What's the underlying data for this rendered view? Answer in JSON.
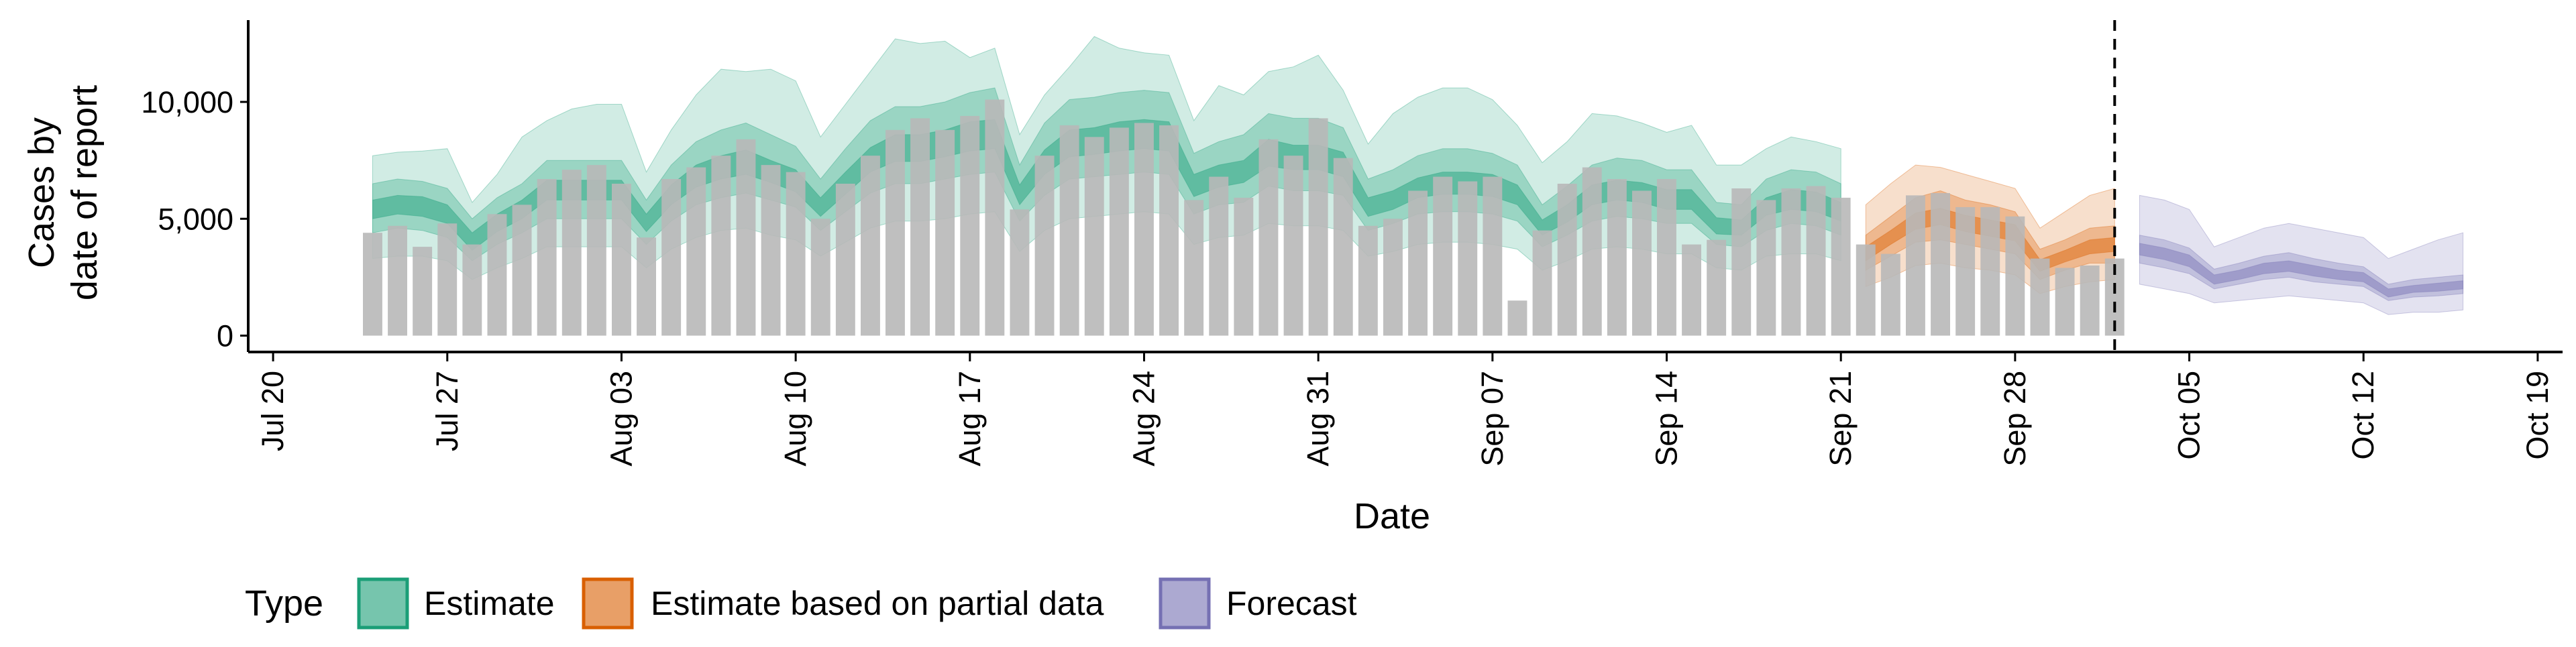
{
  "chart_data": {
    "type": "bar",
    "title": "",
    "xlabel": "Date",
    "ylabel_lines": [
      "Cases by",
      "date of report"
    ],
    "ylim": [
      -700,
      13500
    ],
    "y_ticks": [
      0,
      5000,
      10000
    ],
    "y_tick_labels": [
      "0",
      "5,000",
      "10,000"
    ],
    "x_range": [
      "2020-07-19",
      "2020-10-20"
    ],
    "x_ticks": [
      "2020-07-20",
      "2020-07-27",
      "2020-08-03",
      "2020-08-10",
      "2020-08-17",
      "2020-08-24",
      "2020-08-31",
      "2020-09-07",
      "2020-09-14",
      "2020-09-21",
      "2020-09-28",
      "2020-10-05",
      "2020-10-12",
      "2020-10-19"
    ],
    "x_tick_labels": [
      "Jul 20",
      "Jul 27",
      "Aug 03",
      "Aug 10",
      "Aug 17",
      "Aug 24",
      "Aug 31",
      "Sep 07",
      "Sep 14",
      "Sep 21",
      "Sep 28",
      "Oct 05",
      "Oct 12",
      "Oct 19"
    ],
    "forecast_start_line": "2020-10-02",
    "grid": false,
    "legend_placement": "bottom-left",
    "legend": {
      "title": "Type",
      "items": [
        {
          "label": "Estimate",
          "fill": "#1b9e77",
          "stroke": "#1b9e77"
        },
        {
          "label": "Estimate based on partial data",
          "fill": "#d95f02",
          "stroke": "#d95f02"
        },
        {
          "label": "Forecast",
          "fill": "#7570b3",
          "stroke": "#7570b3"
        }
      ]
    },
    "colors": {
      "bars": "#b8b8b8",
      "estimate": "#1b9e77",
      "partial": "#d95f02",
      "forecast": "#7570b3",
      "axis": "#000000"
    },
    "bar_dates": [
      "2020-07-24",
      "2020-07-25",
      "2020-07-26",
      "2020-07-27",
      "2020-07-28",
      "2020-07-29",
      "2020-07-30",
      "2020-07-31",
      "2020-08-01",
      "2020-08-02",
      "2020-08-03",
      "2020-08-04",
      "2020-08-05",
      "2020-08-06",
      "2020-08-07",
      "2020-08-08",
      "2020-08-09",
      "2020-08-10",
      "2020-08-11",
      "2020-08-12",
      "2020-08-13",
      "2020-08-14",
      "2020-08-15",
      "2020-08-16",
      "2020-08-17",
      "2020-08-18",
      "2020-08-19",
      "2020-08-20",
      "2020-08-21",
      "2020-08-22",
      "2020-08-23",
      "2020-08-24",
      "2020-08-25",
      "2020-08-26",
      "2020-08-27",
      "2020-08-28",
      "2020-08-29",
      "2020-08-30",
      "2020-08-31",
      "2020-09-01",
      "2020-09-02",
      "2020-09-03",
      "2020-09-04",
      "2020-09-05",
      "2020-09-06",
      "2020-09-07",
      "2020-09-08",
      "2020-09-09",
      "2020-09-10",
      "2020-09-11",
      "2020-09-12",
      "2020-09-13",
      "2020-09-14",
      "2020-09-15",
      "2020-09-16",
      "2020-09-17",
      "2020-09-18",
      "2020-09-19",
      "2020-09-20",
      "2020-09-21",
      "2020-09-22",
      "2020-09-23",
      "2020-09-24",
      "2020-09-25",
      "2020-09-26",
      "2020-09-27",
      "2020-09-28",
      "2020-09-29",
      "2020-09-30",
      "2020-10-01",
      "2020-10-02"
    ],
    "bar_values": [
      4400,
      4700,
      3800,
      4800,
      3900,
      5200,
      5600,
      6700,
      7100,
      7300,
      6500,
      4200,
      6700,
      7200,
      7700,
      8400,
      7300,
      7000,
      5000,
      6500,
      7700,
      8800,
      9300,
      8800,
      9400,
      10100,
      5400,
      7700,
      9000,
      8500,
      8900,
      9100,
      9000,
      5800,
      6800,
      5900,
      8400,
      7700,
      9300,
      7600,
      4700,
      5000,
      6200,
      6800,
      6600,
      6800,
      1500,
      4500,
      6500,
      7200,
      6700,
      6200,
      6700,
      3900,
      4100,
      6300,
      5800,
      6300,
      6400,
      5900,
      3900,
      3500,
      6000,
      6100,
      5500,
      5500,
      5100,
      3300,
      2900,
      3000,
      3300
    ],
    "series": [
      {
        "name": "Estimate",
        "dates": [
          "2020-07-24",
          "2020-07-25",
          "2020-07-26",
          "2020-07-27",
          "2020-07-28",
          "2020-07-29",
          "2020-07-30",
          "2020-07-31",
          "2020-08-01",
          "2020-08-02",
          "2020-08-03",
          "2020-08-04",
          "2020-08-05",
          "2020-08-06",
          "2020-08-07",
          "2020-08-08",
          "2020-08-09",
          "2020-08-10",
          "2020-08-11",
          "2020-08-12",
          "2020-08-13",
          "2020-08-14",
          "2020-08-15",
          "2020-08-16",
          "2020-08-17",
          "2020-08-18",
          "2020-08-19",
          "2020-08-20",
          "2020-08-21",
          "2020-08-22",
          "2020-08-23",
          "2020-08-24",
          "2020-08-25",
          "2020-08-26",
          "2020-08-27",
          "2020-08-28",
          "2020-08-29",
          "2020-08-30",
          "2020-08-31",
          "2020-09-01",
          "2020-09-02",
          "2020-09-03",
          "2020-09-04",
          "2020-09-05",
          "2020-09-06",
          "2020-09-07",
          "2020-09-08",
          "2020-09-09",
          "2020-09-10",
          "2020-09-11",
          "2020-09-12",
          "2020-09-13",
          "2020-09-14",
          "2020-09-15",
          "2020-09-16",
          "2020-09-17",
          "2020-09-18",
          "2020-09-19",
          "2020-09-20",
          "2020-09-21"
        ],
        "median": [
          5400,
          5600,
          5500,
          5200,
          4000,
          4800,
          5400,
          6200,
          6200,
          6200,
          6200,
          4800,
          6000,
          6800,
          7200,
          7400,
          7000,
          6600,
          5500,
          6500,
          7500,
          8000,
          8000,
          8200,
          8500,
          8600,
          6000,
          7400,
          8200,
          8300,
          8500,
          8600,
          8500,
          6400,
          6800,
          7000,
          7800,
          7600,
          7600,
          7300,
          5500,
          5800,
          6300,
          6500,
          6500,
          6400,
          6000,
          4600,
          5200,
          6000,
          6200,
          6100,
          5800,
          5800,
          4700,
          4600,
          5500,
          5800,
          5700,
          5300
        ],
        "inner_low": [
          5000,
          5200,
          5100,
          4800,
          3650,
          4450,
          5000,
          5800,
          5800,
          5800,
          5800,
          4450,
          5600,
          6350,
          6700,
          6900,
          6550,
          6150,
          5100,
          6050,
          7000,
          7450,
          7450,
          7650,
          7900,
          8000,
          5600,
          6900,
          7650,
          7750,
          7900,
          8000,
          7900,
          5950,
          6350,
          6550,
          7250,
          7100,
          7100,
          6800,
          5100,
          5400,
          5900,
          6050,
          6050,
          5950,
          5600,
          4300,
          4850,
          5600,
          5800,
          5700,
          5400,
          5400,
          4350,
          4300,
          5150,
          5400,
          5300,
          4900
        ],
        "inner_high": [
          5800,
          6000,
          5950,
          5600,
          4400,
          5200,
          5800,
          6650,
          6650,
          6650,
          6650,
          5200,
          6450,
          7300,
          7700,
          7950,
          7500,
          7100,
          5900,
          7000,
          8050,
          8600,
          8600,
          8800,
          9150,
          9250,
          6450,
          7950,
          8800,
          8900,
          9150,
          9250,
          9150,
          6900,
          7300,
          7500,
          8400,
          8150,
          8150,
          7850,
          5900,
          6200,
          6750,
          7000,
          7000,
          6900,
          6450,
          4950,
          5600,
          6450,
          6650,
          6550,
          6250,
          6250,
          5050,
          4950,
          5900,
          6250,
          6150,
          5700
        ],
        "mid_low": [
          4400,
          4600,
          4500,
          4200,
          3200,
          3900,
          4400,
          5000,
          5000,
          5000,
          5000,
          3900,
          4900,
          5600,
          5900,
          6100,
          5800,
          5500,
          4500,
          5300,
          6100,
          6500,
          6500,
          6700,
          6900,
          7000,
          4900,
          6000,
          6700,
          6800,
          6900,
          7000,
          6900,
          5200,
          5600,
          5700,
          6400,
          6200,
          6200,
          6000,
          4500,
          4800,
          5200,
          5300,
          5300,
          5200,
          4900,
          3800,
          4300,
          4900,
          5100,
          5000,
          4800,
          4800,
          3900,
          3800,
          4500,
          4800,
          4700,
          4300
        ],
        "mid_high": [
          6500,
          6700,
          6600,
          6300,
          5000,
          5900,
          6500,
          7500,
          7500,
          7500,
          7500,
          5800,
          7300,
          8300,
          8800,
          9100,
          8600,
          8100,
          6700,
          8000,
          9200,
          9800,
          9800,
          10000,
          10400,
          10600,
          7300,
          9100,
          10100,
          10200,
          10400,
          10500,
          10400,
          7800,
          8300,
          8600,
          9500,
          9300,
          9300,
          8900,
          6700,
          7100,
          7700,
          8000,
          8000,
          7800,
          7300,
          5600,
          6400,
          7300,
          7600,
          7500,
          7100,
          7100,
          5700,
          5600,
          6700,
          7100,
          7000,
          6500
        ],
        "outer_low": [
          3300,
          3400,
          3400,
          3200,
          2400,
          2900,
          3300,
          3800,
          3800,
          3800,
          3800,
          2900,
          3700,
          4200,
          4500,
          4600,
          4300,
          4100,
          3400,
          4000,
          4600,
          4900,
          4900,
          5000,
          5200,
          5300,
          3600,
          4500,
          5000,
          5100,
          5200,
          5300,
          5200,
          3900,
          4200,
          4300,
          4800,
          4700,
          4700,
          4500,
          3400,
          3600,
          3900,
          4000,
          4000,
          3900,
          3700,
          2800,
          3200,
          3700,
          3800,
          3700,
          3500,
          3500,
          2900,
          2800,
          3400,
          3500,
          3500,
          3200
        ],
        "outer_high": [
          7700,
          7850,
          7900,
          8000,
          5700,
          6900,
          8500,
          9200,
          9700,
          9900,
          9900,
          7000,
          8800,
          10300,
          11400,
          11300,
          11400,
          10900,
          8500,
          9900,
          11300,
          12700,
          12500,
          12600,
          11900,
          12300,
          8600,
          10300,
          11500,
          12800,
          12300,
          12100,
          12000,
          9200,
          10700,
          10300,
          11300,
          11500,
          12000,
          10500,
          8200,
          9500,
          10200,
          10600,
          10600,
          10100,
          9000,
          7400,
          8300,
          9500,
          9400,
          9100,
          8700,
          9000,
          7300,
          7300,
          8000,
          8500,
          8300,
          8000
        ]
      },
      {
        "name": "Estimate based on partial data",
        "dates": [
          "2020-09-22",
          "2020-09-23",
          "2020-09-24",
          "2020-09-25",
          "2020-09-26",
          "2020-09-27",
          "2020-09-28",
          "2020-09-29",
          "2020-09-30",
          "2020-10-01",
          "2020-10-02"
        ],
        "median": [
          3500,
          4200,
          4900,
          5100,
          4800,
          4600,
          4400,
          3000,
          3400,
          3800,
          3900
        ],
        "inner_low": [
          3200,
          3900,
          4550,
          4750,
          4450,
          4250,
          4050,
          2750,
          3150,
          3500,
          3600
        ],
        "inner_high": [
          3800,
          4500,
          5250,
          5450,
          5150,
          4950,
          4750,
          3250,
          3650,
          4100,
          4200
        ],
        "mid_low": [
          2800,
          3400,
          4000,
          4100,
          3900,
          3700,
          3500,
          2400,
          2800,
          3100,
          3100
        ],
        "mid_high": [
          4300,
          5100,
          5900,
          6200,
          5800,
          5600,
          5300,
          3700,
          4100,
          4600,
          4700
        ],
        "outer_low": [
          2100,
          2500,
          3000,
          3100,
          2900,
          2800,
          2600,
          1800,
          2100,
          2300,
          2400
        ],
        "outer_high": [
          5600,
          6500,
          7300,
          7200,
          6900,
          6600,
          6300,
          4600,
          5300,
          6000,
          6300
        ]
      },
      {
        "name": "Forecast",
        "dates": [
          "2020-10-03",
          "2020-10-04",
          "2020-10-05",
          "2020-10-06",
          "2020-10-07",
          "2020-10-08",
          "2020-10-09",
          "2020-10-10",
          "2020-10-11",
          "2020-10-12",
          "2020-10-13",
          "2020-10-14",
          "2020-10-15",
          "2020-10-16"
        ],
        "median": [
          3700,
          3500,
          3200,
          2400,
          2600,
          2900,
          3000,
          2800,
          2600,
          2500,
          1800,
          2000,
          2100,
          2200
        ],
        "inner_low": [
          3450,
          3250,
          2950,
          2200,
          2400,
          2650,
          2750,
          2550,
          2400,
          2300,
          1650,
          1850,
          1900,
          2000
        ],
        "inner_high": [
          3950,
          3750,
          3450,
          2600,
          2800,
          3100,
          3200,
          3000,
          2800,
          2700,
          2000,
          2150,
          2250,
          2350
        ],
        "mid_low": [
          3100,
          2900,
          2650,
          2000,
          2200,
          2400,
          2500,
          2300,
          2200,
          2100,
          1500,
          1650,
          1700,
          1800
        ],
        "mid_high": [
          4300,
          4100,
          3750,
          2850,
          3100,
          3400,
          3550,
          3300,
          3100,
          2950,
          2200,
          2400,
          2500,
          2600
        ],
        "outer_low": [
          2200,
          2000,
          1800,
          1400,
          1500,
          1600,
          1700,
          1600,
          1500,
          1400,
          900,
          1000,
          1000,
          1100
        ],
        "outer_high": [
          6000,
          5800,
          5400,
          3800,
          4200,
          4600,
          4800,
          4600,
          4400,
          4200,
          3300,
          3700,
          4100,
          4400
        ]
      }
    ]
  }
}
